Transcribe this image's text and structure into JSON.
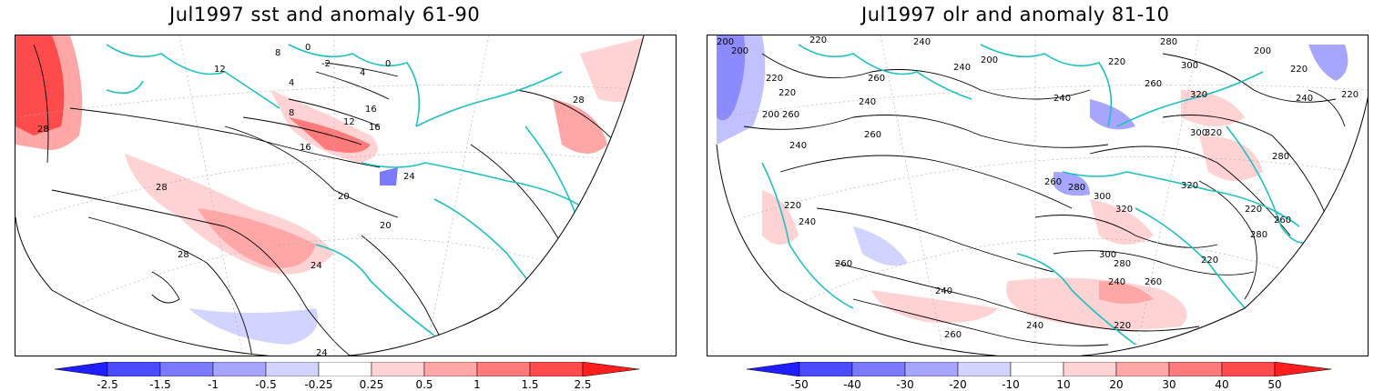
{
  "panels": [
    {
      "title": "Jul1997 sst and anomaly 61-90",
      "colorbar": {
        "labels": [
          "-2.5",
          "-1.5",
          "-1",
          "-0.5",
          "-0.25",
          "0.25",
          "0.5",
          "1",
          "1.5",
          "2.5"
        ],
        "colors": [
          "#1e1eff",
          "#4b4bff",
          "#7a7aff",
          "#a6a6ff",
          "#d3d3ff",
          "#ffffff",
          "#ffd3d3",
          "#ffa6a6",
          "#ff7a7a",
          "#ff4b4b",
          "#ff1e1e"
        ]
      },
      "contour_labels": [
        "28",
        "12",
        "8",
        "4",
        "0",
        "-2",
        "0",
        "4",
        "8",
        "12",
        "16",
        "16",
        "16",
        "20",
        "24",
        "28",
        "28",
        "24",
        "28",
        "24",
        "20"
      ]
    },
    {
      "title": "Jul1997 olr and anomaly 81-10",
      "colorbar": {
        "labels": [
          "-50",
          "-40",
          "-30",
          "-20",
          "-10",
          "10",
          "20",
          "30",
          "40",
          "50"
        ],
        "colors": [
          "#1e1eff",
          "#4b4bff",
          "#7a7aff",
          "#a6a6ff",
          "#d3d3ff",
          "#ffffff",
          "#ffd3d3",
          "#ffa6a6",
          "#ff7a7a",
          "#ff4b4b",
          "#ff1e1e"
        ]
      },
      "contour_labels": [
        "200",
        "220",
        "240",
        "260",
        "240",
        "200",
        "200",
        "220",
        "280",
        "300",
        "220",
        "200",
        "220",
        "320",
        "220",
        "240",
        "260",
        "240",
        "220",
        "200",
        "260",
        "240",
        "260",
        "280",
        "300",
        "320",
        "320",
        "300",
        "280",
        "320",
        "220",
        "260",
        "240",
        "260",
        "220",
        "240",
        "280",
        "300",
        "280",
        "260",
        "240",
        "220",
        "260",
        "240",
        "220",
        "240",
        "260"
      ]
    }
  ],
  "colors": {
    "coastline": "#20c0c0",
    "contour": "#000000",
    "grid": "#aaaaaa"
  }
}
